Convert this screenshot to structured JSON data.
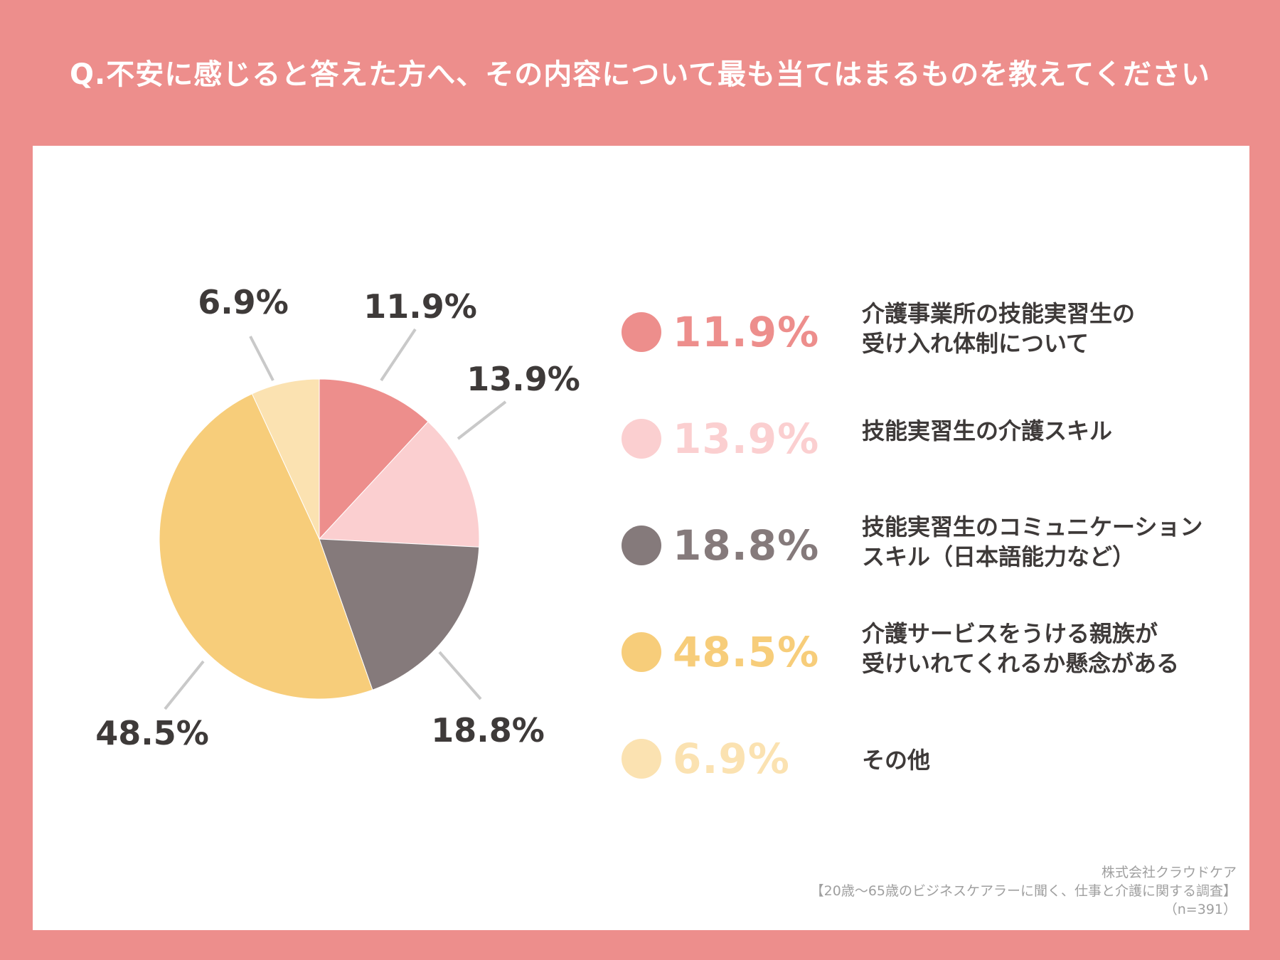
{
  "title": "Q.不安に感じると答えた方へ、その内容について最も当てはまるものを教えてください",
  "chart_data": {
    "type": "pie",
    "start": "12 o'clock",
    "direction": "clockwise",
    "slices": [
      {
        "label_lines": [
          "介護事業所の技能実習生の",
          "受け入れ体制について"
        ],
        "value": 11.9,
        "display": "11.9%",
        "color": "#ed8e8c"
      },
      {
        "label_lines": [
          "技能実習生の介護スキル"
        ],
        "value": 13.9,
        "display": "13.9%",
        "color": "#fbcfd0"
      },
      {
        "label_lines": [
          "技能実習生のコミュニケーション",
          "スキル（日本語能力など）"
        ],
        "value": 18.8,
        "display": "18.8%",
        "color": "#857a7b"
      },
      {
        "label_lines": [
          "介護サービスをうける親族が",
          "受けいれてくれるか懸念がある"
        ],
        "value": 48.5,
        "display": "48.5%",
        "color": "#f7cd7a"
      },
      {
        "label_lines": [
          "その他"
        ],
        "value": 6.9,
        "display": "6.9%",
        "color": "#fbe2b1"
      }
    ]
  },
  "source": {
    "company": "株式会社クラウドケア",
    "survey": "【20歳〜65歳のビジネスケアラーに聞く、仕事と介護に関する調査】",
    "sample": "（n=391）"
  }
}
